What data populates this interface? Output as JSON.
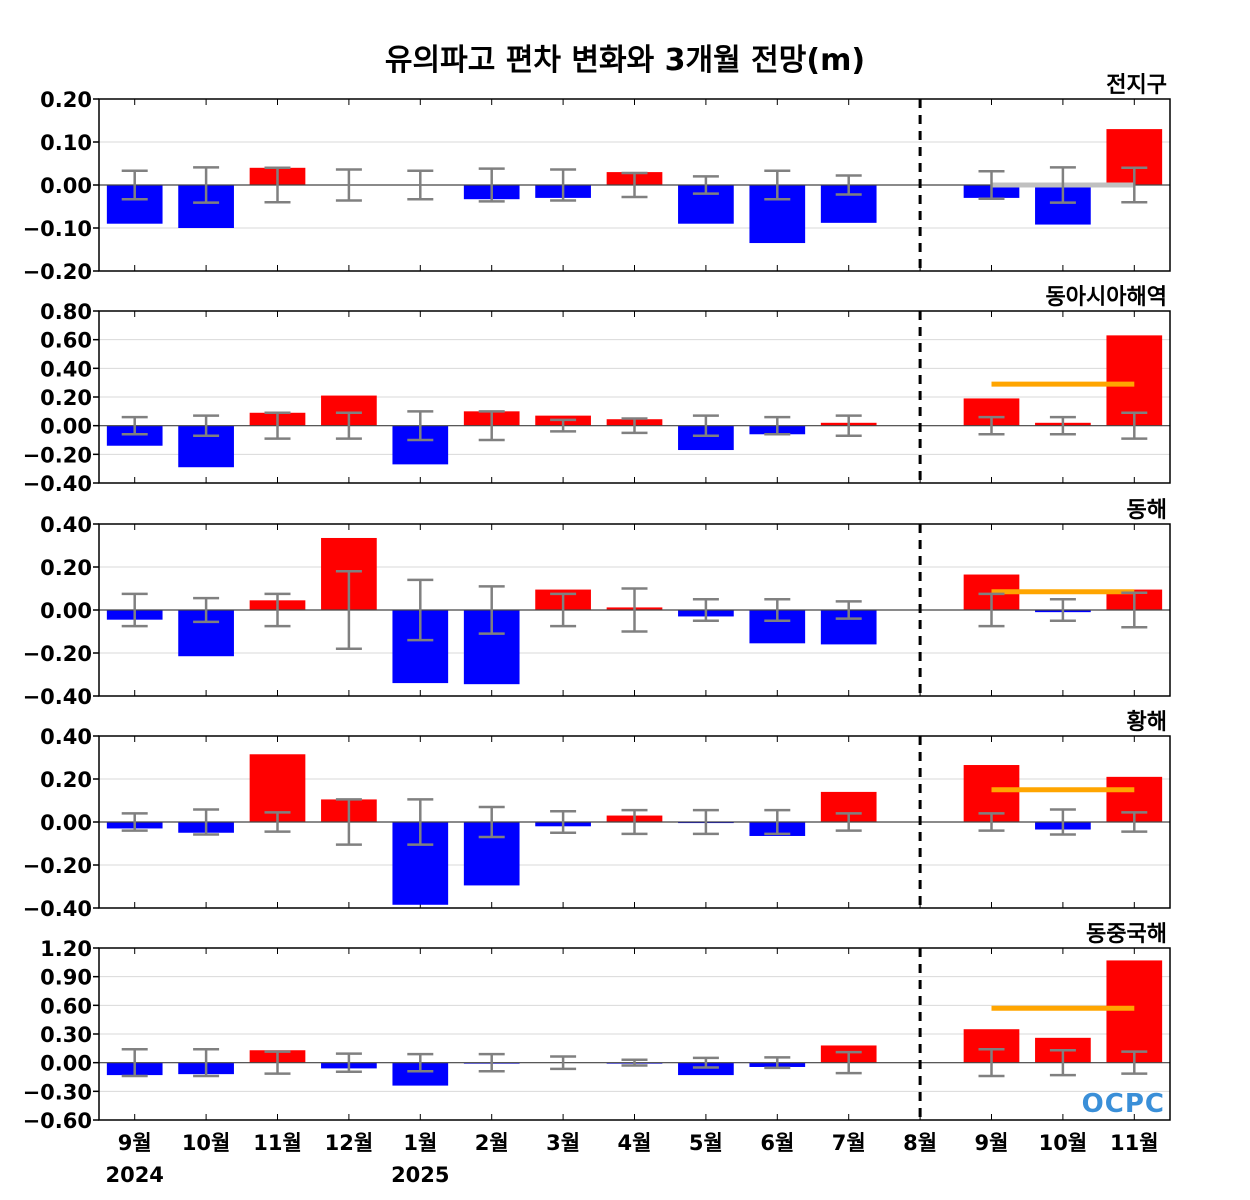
{
  "title": "유의파고 편차 변화와 3개월 전망(m)",
  "x_labels": [
    "9월",
    "10월",
    "11월",
    "12월",
    "1월",
    "2월",
    "3월",
    "4월",
    "5월",
    "6월",
    "7월",
    "8월",
    "9월",
    "10월",
    "11월"
  ],
  "year_labels": [
    {
      "text": "2024",
      "index": 0
    },
    {
      "text": "2025",
      "index": 4
    }
  ],
  "forecast_divider_after": "8월",
  "logo": "OCPC",
  "colors": {
    "positive": "#ff0000",
    "negative": "#0000ff",
    "error_bar": "#808080",
    "forecast_mean_line": "#ffa500",
    "forecast_mean_line_global": "#c0c0c0",
    "divider": "#000000"
  },
  "chart_data": [
    {
      "type": "bar",
      "region": "전지구",
      "categories": [
        "9월",
        "10월",
        "11월",
        "12월",
        "1월",
        "2월",
        "3월",
        "4월",
        "5월",
        "6월",
        "7월",
        "8월",
        "9월",
        "10월",
        "11월"
      ],
      "values": [
        -0.09,
        -0.1,
        0.04,
        0.0,
        0.0,
        -0.033,
        -0.03,
        0.03,
        -0.09,
        -0.135,
        -0.088,
        0.0,
        -0.03,
        -0.092,
        0.13
      ],
      "error": [
        0.033,
        0.041,
        0.04,
        0.036,
        0.033,
        0.038,
        0.036,
        0.028,
        0.02,
        0.033,
        0.022,
        0.0,
        0.032,
        0.041,
        0.04
      ],
      "forecast_mean": {
        "value": 0.0,
        "from": "9월",
        "to": "11월"
      },
      "ylim": [
        -0.2,
        0.2
      ],
      "yticks": [
        "0.20",
        "0.10",
        "0.00",
        "−0.10",
        "−0.20"
      ],
      "ytick_values": [
        0.2,
        0.1,
        0.0,
        -0.1,
        -0.2
      ]
    },
    {
      "type": "bar",
      "region": "동아시아해역",
      "categories": [
        "9월",
        "10월",
        "11월",
        "12월",
        "1월",
        "2월",
        "3월",
        "4월",
        "5월",
        "6월",
        "7월",
        "8월",
        "9월",
        "10월",
        "11월"
      ],
      "values": [
        -0.14,
        -0.29,
        0.09,
        0.21,
        -0.27,
        0.1,
        0.07,
        0.045,
        -0.17,
        -0.06,
        0.02,
        0.0,
        0.19,
        0.02,
        0.63
      ],
      "error": [
        0.06,
        0.07,
        0.09,
        0.09,
        0.1,
        0.1,
        0.04,
        0.05,
        0.07,
        0.06,
        0.07,
        0.0,
        0.06,
        0.06,
        0.09
      ],
      "forecast_mean": {
        "value": 0.29,
        "from": "9월",
        "to": "11월"
      },
      "ylim": [
        -0.4,
        0.8
      ],
      "yticks": [
        "0.80",
        "0.60",
        "0.40",
        "0.20",
        "0.00",
        "−0.20",
        "−0.40"
      ],
      "ytick_values": [
        0.8,
        0.6,
        0.4,
        0.2,
        0.0,
        -0.2,
        -0.4
      ]
    },
    {
      "type": "bar",
      "region": "동해",
      "categories": [
        "9월",
        "10월",
        "11월",
        "12월",
        "1월",
        "2월",
        "3월",
        "4월",
        "5월",
        "6월",
        "7월",
        "8월",
        "9월",
        "10월",
        "11월"
      ],
      "values": [
        -0.045,
        -0.215,
        0.045,
        0.335,
        -0.34,
        -0.345,
        0.095,
        0.012,
        -0.03,
        -0.155,
        -0.16,
        0.0,
        0.165,
        -0.01,
        0.095
      ],
      "error": [
        0.075,
        0.055,
        0.075,
        0.18,
        0.14,
        0.11,
        0.075,
        0.1,
        0.05,
        0.05,
        0.04,
        0.0,
        0.075,
        0.05,
        0.08
      ],
      "forecast_mean": {
        "value": 0.085,
        "from": "9월",
        "to": "11월"
      },
      "ylim": [
        -0.4,
        0.4
      ],
      "yticks": [
        "0.40",
        "0.20",
        "0.00",
        "−0.20",
        "−0.40"
      ],
      "ytick_values": [
        0.4,
        0.2,
        0.0,
        -0.2,
        -0.4
      ]
    },
    {
      "type": "bar",
      "region": "황해",
      "categories": [
        "9월",
        "10월",
        "11월",
        "12월",
        "1월",
        "2월",
        "3월",
        "4월",
        "5월",
        "6월",
        "7월",
        "8월",
        "9월",
        "10월",
        "11월"
      ],
      "values": [
        -0.03,
        -0.05,
        0.315,
        0.105,
        -0.385,
        -0.295,
        -0.02,
        0.03,
        -0.005,
        -0.065,
        0.14,
        0.0,
        0.265,
        -0.035,
        0.21
      ],
      "error": [
        0.04,
        0.058,
        0.045,
        0.105,
        0.105,
        0.07,
        0.05,
        0.055,
        0.055,
        0.055,
        0.04,
        0.0,
        0.04,
        0.058,
        0.045
      ],
      "forecast_mean": {
        "value": 0.15,
        "from": "9월",
        "to": "11월"
      },
      "ylim": [
        -0.4,
        0.4
      ],
      "yticks": [
        "0.40",
        "0.20",
        "0.00",
        "−0.20",
        "−0.40"
      ],
      "ytick_values": [
        0.4,
        0.2,
        0.0,
        -0.2,
        -0.4
      ]
    },
    {
      "type": "bar",
      "region": "동중국해",
      "categories": [
        "9월",
        "10월",
        "11월",
        "12월",
        "1월",
        "2월",
        "3월",
        "4월",
        "5월",
        "6월",
        "7월",
        "8월",
        "9월",
        "10월",
        "11월"
      ],
      "values": [
        -0.13,
        -0.12,
        0.13,
        -0.06,
        -0.24,
        -0.01,
        0.0,
        -0.01,
        -0.13,
        -0.045,
        0.18,
        0.0,
        0.35,
        0.26,
        1.07
      ],
      "error": [
        0.14,
        0.14,
        0.115,
        0.095,
        0.09,
        0.09,
        0.065,
        0.03,
        0.05,
        0.055,
        0.11,
        0.0,
        0.14,
        0.13,
        0.115
      ],
      "forecast_mean": {
        "value": 0.57,
        "from": "9월",
        "to": "11월"
      },
      "ylim": [
        -0.6,
        1.2
      ],
      "yticks": [
        "1.20",
        "0.90",
        "0.60",
        "0.30",
        "0.00",
        "−0.30",
        "−0.60"
      ],
      "ytick_values": [
        1.2,
        0.9,
        0.6,
        0.3,
        0.0,
        -0.3,
        -0.6
      ]
    }
  ]
}
